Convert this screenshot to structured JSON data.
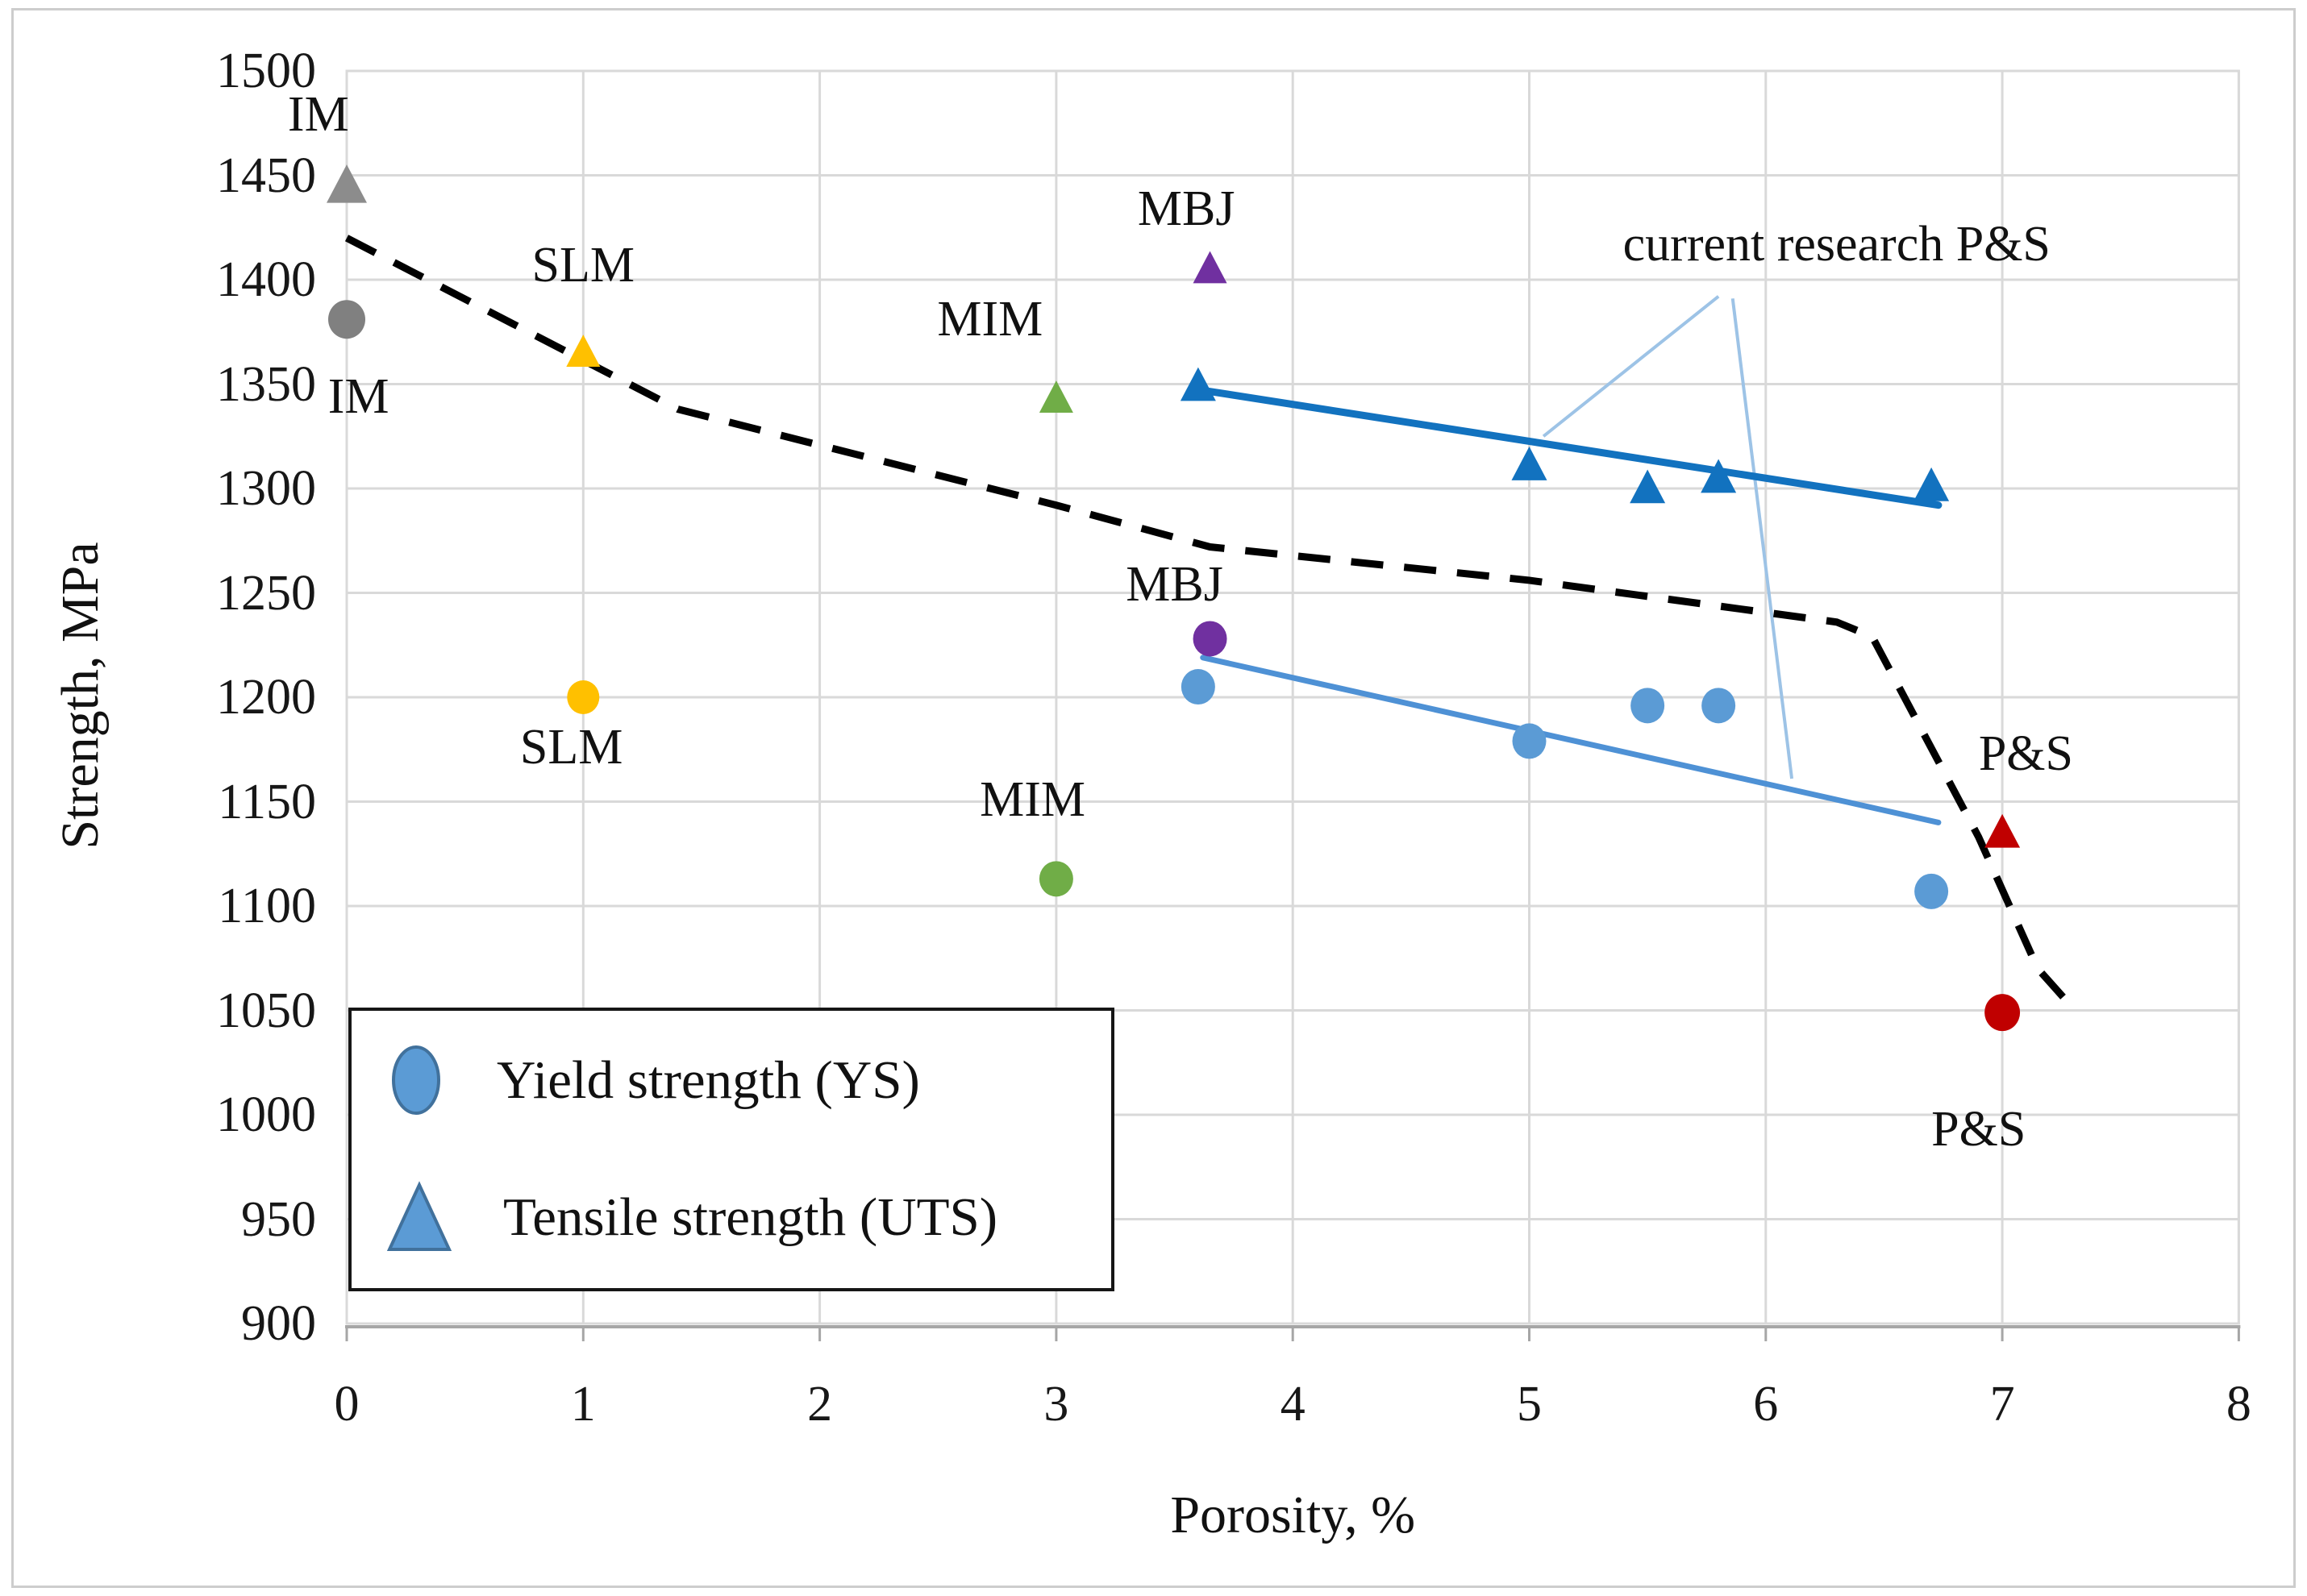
{
  "figure": {
    "background": "#ffffff",
    "border_color": "#cdcdcd"
  },
  "axes": {
    "x_label": "Porosity, %",
    "y_label": "Strength, MPa",
    "x_ticks": [
      "0",
      "1",
      "2",
      "3",
      "4",
      "5",
      "6",
      "7",
      "8"
    ],
    "y_ticks": [
      "1500",
      "1450",
      "1400",
      "1350",
      "1300",
      "1250",
      "1200",
      "1150",
      "1100",
      "1050",
      "1000",
      "950",
      "900"
    ],
    "grid_color": "#d9d9d9",
    "axis_line_color": "#a6a6a6"
  },
  "legend": {
    "items": [
      {
        "marker": "circle",
        "label": "Yield strength (YS)"
      },
      {
        "marker": "triangle",
        "label": "Tensile strength (UTS)"
      }
    ],
    "marker_fill": "#5b9bd5",
    "marker_stroke": "#41719c"
  },
  "chart_data": {
    "type": "scatter",
    "title": "",
    "xlabel": "Porosity, %",
    "ylabel": "Strength, MPa",
    "xlim": [
      0,
      8
    ],
    "ylim": [
      900,
      1500
    ],
    "grid": true,
    "series": [
      {
        "name": "Yield strength (YS)",
        "marker": "circle",
        "color": "#5b9bd5",
        "size": 42,
        "points": [
          [
            3.6,
            1205
          ],
          [
            5.0,
            1179
          ],
          [
            5.5,
            1196
          ],
          [
            5.8,
            1196
          ],
          [
            6.7,
            1107
          ]
        ]
      },
      {
        "name": "Tensile strength (UTS)",
        "marker": "triangle",
        "color": "#1272bf",
        "size": 44,
        "points": [
          [
            3.6,
            1350
          ],
          [
            5.0,
            1312
          ],
          [
            5.5,
            1301
          ],
          [
            5.8,
            1306
          ],
          [
            6.7,
            1302
          ]
        ]
      },
      {
        "name": "IM yield strength",
        "marker": "circle",
        "color": "#808080",
        "size": 46,
        "points": [
          [
            0,
            1381
          ]
        ]
      },
      {
        "name": "IM tensile strength",
        "marker": "triangle",
        "color": "#8c8c8c",
        "size": 50,
        "points": [
          [
            0,
            1446
          ]
        ]
      },
      {
        "name": "SLM yield strength",
        "marker": "circle",
        "color": "#ffc000",
        "size": 40,
        "points": [
          [
            1,
            1200
          ]
        ]
      },
      {
        "name": "SLM tensile strength",
        "marker": "triangle",
        "color": "#ffc000",
        "size": 42,
        "points": [
          [
            1,
            1366
          ]
        ]
      },
      {
        "name": "MIM yield strength",
        "marker": "circle",
        "color": "#70ad47",
        "size": 42,
        "points": [
          [
            3,
            1113
          ]
        ]
      },
      {
        "name": "MIM tensile strength",
        "marker": "triangle",
        "color": "#70ad47",
        "size": 42,
        "points": [
          [
            3,
            1344
          ]
        ]
      },
      {
        "name": "MBJ yield strength",
        "marker": "circle",
        "color": "#7030a0",
        "size": 42,
        "points": [
          [
            3.65,
            1228
          ]
        ]
      },
      {
        "name": "MBJ tensile strength",
        "marker": "triangle",
        "color": "#7030a0",
        "size": 42,
        "points": [
          [
            3.65,
            1406
          ]
        ]
      },
      {
        "name": "P&S yield strength",
        "marker": "circle",
        "color": "#c00000",
        "size": 44,
        "points": [
          [
            7,
            1049
          ]
        ]
      },
      {
        "name": "P&S tensile strength",
        "marker": "triangle",
        "color": "#c00000",
        "size": 44,
        "points": [
          [
            7,
            1136
          ]
        ]
      }
    ],
    "trendlines": [
      {
        "name": "UTS trendline",
        "color": "#1272bf",
        "width": 9,
        "from": [
          3.62,
          1347
        ],
        "to": [
          6.73,
          1292
        ]
      },
      {
        "name": "YS trendline",
        "color": "#4e91d5",
        "width": 7,
        "from": [
          3.62,
          1219
        ],
        "to": [
          6.73,
          1140
        ]
      }
    ],
    "callout_lines": {
      "color": "#9dc3e6",
      "width": 4,
      "lines": [
        {
          "from": [
            5.8,
            1392
          ],
          "to": [
            5.06,
            1325
          ]
        },
        {
          "from": [
            5.86,
            1391
          ],
          "to": [
            6.11,
            1161
          ]
        }
      ]
    },
    "dashed_line": {
      "name": "wrought reference trend",
      "color": "#000000",
      "width": 9,
      "dash": "40 26",
      "points": [
        [
          0,
          1420
        ],
        [
          1.4,
          1338
        ],
        [
          3.0,
          1292
        ],
        [
          3.65,
          1272
        ],
        [
          5.0,
          1256
        ],
        [
          6.3,
          1236
        ],
        [
          6.45,
          1229
        ],
        [
          6.9,
          1133
        ],
        [
          7.15,
          1070
        ],
        [
          7.3,
          1051
        ]
      ]
    },
    "annotations": [
      {
        "text": "IM",
        "x": -0.12,
        "y": 1479
      },
      {
        "text": "IM",
        "x": 0.05,
        "y": 1344
      },
      {
        "text": "SLM",
        "x": 1.0,
        "y": 1407
      },
      {
        "text": "SLM",
        "x": 0.95,
        "y": 1176
      },
      {
        "text": "MIM",
        "x": 2.72,
        "y": 1381
      },
      {
        "text": "MIM",
        "x": 2.9,
        "y": 1151
      },
      {
        "text": "MBJ",
        "x": 3.55,
        "y": 1434
      },
      {
        "text": "MBJ",
        "x": 3.5,
        "y": 1254
      },
      {
        "text": "current research P&S",
        "x": 6.3,
        "y": 1417
      },
      {
        "text": "P&S",
        "x": 7.1,
        "y": 1173
      },
      {
        "text": "P&S",
        "x": 6.9,
        "y": 993
      }
    ]
  }
}
